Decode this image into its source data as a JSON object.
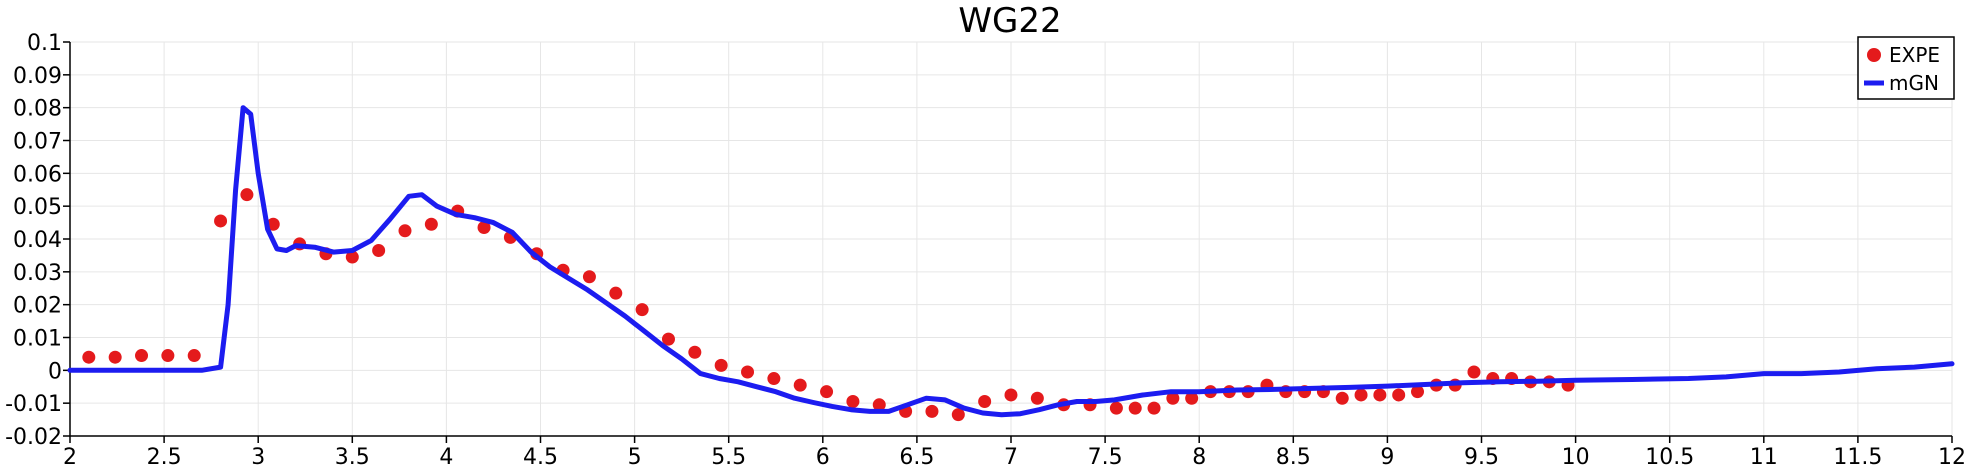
{
  "chart_data": {
    "type": "line",
    "title": "WG22",
    "xlabel": "",
    "ylabel": "",
    "xlim": [
      2,
      12
    ],
    "ylim": [
      -0.02,
      0.1
    ],
    "x_ticks": [
      "2",
      "2.5",
      "3",
      "3.5",
      "4",
      "4.5",
      "5",
      "5.5",
      "6",
      "6.5",
      "7",
      "7.5",
      "8",
      "8.5",
      "9",
      "9.5",
      "10",
      "10.5",
      "11",
      "11.5",
      "12"
    ],
    "y_ticks": [
      "0.1",
      "0.09",
      "0.08",
      "0.07",
      "0.06",
      "0.05",
      "0.04",
      "0.03",
      "0.02",
      "0.01",
      "0",
      "-0.01",
      "-0.02"
    ],
    "grid": true,
    "legend_position": "top-right",
    "series": [
      {
        "name": "EXPE",
        "style": "points",
        "color": "#e41a1c",
        "x": [
          2.1,
          2.24,
          2.38,
          2.52,
          2.66,
          2.8,
          2.94,
          3.08,
          3.22,
          3.36,
          3.5,
          3.64,
          3.78,
          3.92,
          4.06,
          4.2,
          4.34,
          4.48,
          4.62,
          4.76,
          4.9,
          5.04,
          5.18,
          5.32,
          5.46,
          5.6,
          5.74,
          5.88,
          6.02,
          6.16,
          6.3,
          6.44,
          6.58,
          6.72,
          6.86,
          7.0,
          7.14,
          7.28,
          7.42,
          7.56,
          7.66,
          7.76,
          7.86,
          7.96,
          8.06,
          8.16,
          8.26,
          8.36,
          8.46,
          8.56,
          8.66,
          8.76,
          8.86,
          8.96,
          9.06,
          9.16,
          9.26,
          9.36,
          9.46,
          9.56,
          9.66,
          9.76,
          9.86,
          9.96
        ],
        "y": [
          0.004,
          0.004,
          0.0045,
          0.0045,
          0.0045,
          0.0455,
          0.0535,
          0.0445,
          0.0385,
          0.0355,
          0.0345,
          0.0365,
          0.0425,
          0.0445,
          0.0485,
          0.0435,
          0.0405,
          0.0355,
          0.0305,
          0.0285,
          0.0235,
          0.0185,
          0.0095,
          0.0055,
          0.0015,
          -0.0005,
          -0.0025,
          -0.0045,
          -0.0065,
          -0.0095,
          -0.0105,
          -0.0125,
          -0.0125,
          -0.0135,
          -0.0095,
          -0.0075,
          -0.0085,
          -0.0105,
          -0.0105,
          -0.0115,
          -0.0115,
          -0.0115,
          -0.0085,
          -0.0085,
          -0.0065,
          -0.0065,
          -0.0065,
          -0.0045,
          -0.0065,
          -0.0065,
          -0.0065,
          -0.0085,
          -0.0075,
          -0.0075,
          -0.0075,
          -0.0065,
          -0.0045,
          -0.0045,
          -0.0005,
          -0.0025,
          -0.0025,
          -0.0035,
          -0.0035,
          -0.0045
        ]
      },
      {
        "name": "mGN",
        "style": "line",
        "color": "#1c1cf0",
        "x": [
          2.0,
          2.5,
          2.7,
          2.8,
          2.84,
          2.88,
          2.92,
          2.96,
          3.0,
          3.05,
          3.1,
          3.15,
          3.2,
          3.3,
          3.4,
          3.5,
          3.6,
          3.7,
          3.8,
          3.87,
          3.95,
          4.05,
          4.15,
          4.25,
          4.35,
          4.45,
          4.55,
          4.65,
          4.75,
          4.85,
          4.95,
          5.05,
          5.15,
          5.25,
          5.35,
          5.45,
          5.55,
          5.65,
          5.75,
          5.85,
          5.95,
          6.05,
          6.15,
          6.25,
          6.35,
          6.45,
          6.55,
          6.65,
          6.75,
          6.85,
          6.95,
          7.05,
          7.15,
          7.25,
          7.35,
          7.45,
          7.55,
          7.7,
          7.85,
          8.0,
          8.2,
          8.4,
          8.6,
          8.8,
          9.0,
          9.2,
          9.4,
          9.6,
          9.8,
          10.0,
          10.3,
          10.6,
          10.8,
          11.0,
          11.2,
          11.4,
          11.6,
          11.8,
          12.0
        ],
        "y": [
          0.0,
          0.0,
          0.0,
          0.001,
          0.02,
          0.055,
          0.08,
          0.078,
          0.06,
          0.043,
          0.037,
          0.0365,
          0.038,
          0.0375,
          0.036,
          0.0365,
          0.0395,
          0.046,
          0.053,
          0.0535,
          0.05,
          0.0475,
          0.0465,
          0.045,
          0.042,
          0.036,
          0.0315,
          0.028,
          0.0245,
          0.0205,
          0.0165,
          0.012,
          0.0075,
          0.0035,
          -0.001,
          -0.0025,
          -0.0035,
          -0.005,
          -0.0065,
          -0.0085,
          -0.0098,
          -0.011,
          -0.012,
          -0.0125,
          -0.0125,
          -0.0105,
          -0.0085,
          -0.009,
          -0.0115,
          -0.013,
          -0.0135,
          -0.0132,
          -0.012,
          -0.0105,
          -0.0095,
          -0.0095,
          -0.009,
          -0.0075,
          -0.0065,
          -0.0065,
          -0.006,
          -0.0058,
          -0.0055,
          -0.0052,
          -0.0048,
          -0.0043,
          -0.0038,
          -0.0035,
          -0.0033,
          -0.003,
          -0.0028,
          -0.0025,
          -0.002,
          -0.001,
          -0.001,
          -0.0005,
          0.0005,
          0.001,
          0.002
        ]
      }
    ]
  }
}
